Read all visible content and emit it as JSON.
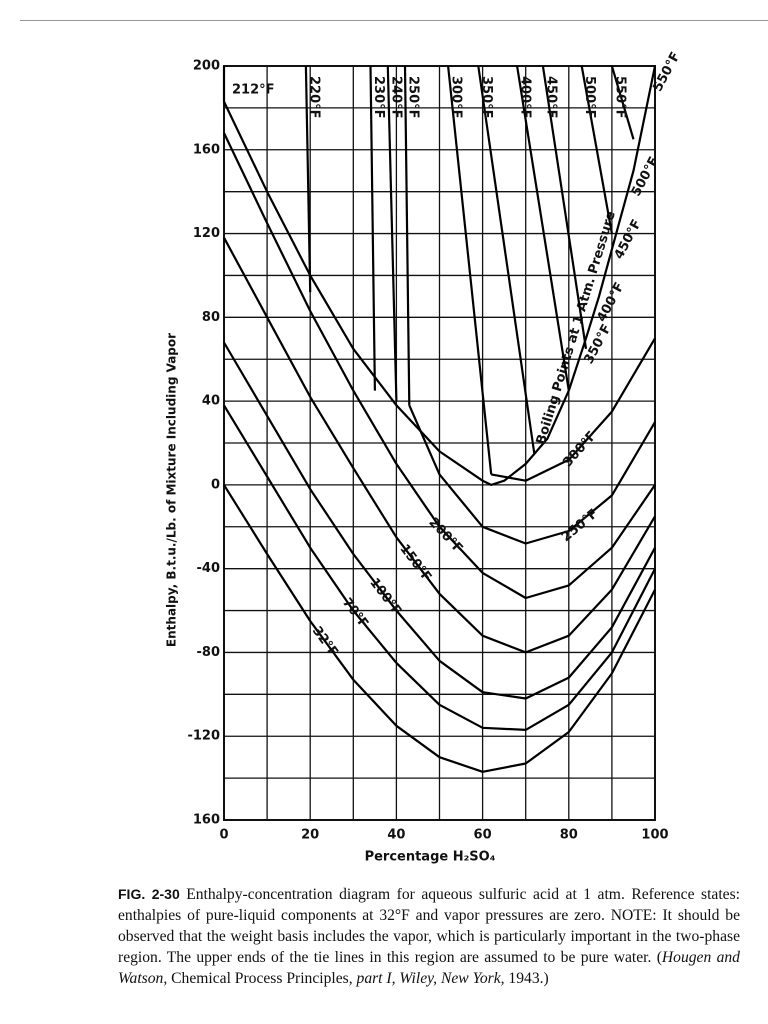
{
  "chart_data": {
    "type": "line",
    "y_label": "Enthalpy, B.t.u./Lb. of Mixture Including Vapor",
    "x_label": "Percentage H₂SO₄",
    "xlim": [
      0,
      100
    ],
    "ylim": [
      -160,
      200
    ],
    "xticks": [
      0,
      20,
      40,
      60,
      80,
      100
    ],
    "yticks": [
      {
        "value": -160,
        "label": "160"
      },
      -120,
      -80,
      -40,
      0,
      40,
      80,
      120,
      160,
      200
    ],
    "minor_xticks": [
      10,
      30,
      50,
      70,
      90
    ],
    "minor_yticks": [
      -140,
      -100,
      -60,
      -20,
      20,
      60,
      100,
      140,
      180
    ],
    "grid": true,
    "series": [
      {
        "name": "32°F",
        "color": "#000000",
        "x": [
          0,
          10,
          20,
          30,
          40,
          50,
          60,
          70,
          80,
          90,
          100
        ],
        "values": [
          0,
          -33,
          -65,
          -93,
          -115,
          -130,
          -137,
          -133,
          -118,
          -90,
          -50
        ]
      },
      {
        "name": "70°F",
        "color": "#000000",
        "x": [
          0,
          10,
          20,
          30,
          40,
          50,
          60,
          70,
          80,
          90,
          100
        ],
        "values": [
          38,
          4,
          -30,
          -60,
          -85,
          -105,
          -116,
          -117,
          -105,
          -80,
          -40
        ]
      },
      {
        "name": "100°F",
        "color": "#000000",
        "x": [
          0,
          10,
          20,
          30,
          40,
          50,
          60,
          70,
          80,
          90,
          100
        ],
        "values": [
          68,
          33,
          -2,
          -33,
          -60,
          -84,
          -99,
          -102,
          -92,
          -68,
          -30
        ]
      },
      {
        "name": "150°F",
        "color": "#000000",
        "x": [
          0,
          10,
          20,
          30,
          40,
          50,
          60,
          70,
          80,
          90,
          100
        ],
        "values": [
          118,
          80,
          42,
          8,
          -25,
          -52,
          -72,
          -80,
          -72,
          -50,
          -15
        ]
      },
      {
        "name": "200°F",
        "color": "#000000",
        "x": [
          0,
          10,
          20,
          30,
          40,
          50,
          60,
          70,
          80,
          90,
          100
        ],
        "values": [
          168,
          125,
          83,
          45,
          10,
          -20,
          -42,
          -54,
          -48,
          -30,
          0
        ]
      },
      {
        "name": "250°F",
        "color": "#000000",
        "x": [
          43,
          50,
          60,
          70,
          80,
          90,
          100
        ],
        "values": [
          38,
          5,
          -20,
          -28,
          -22,
          -5,
          30
        ]
      },
      {
        "name": "300°F",
        "color": "#000000",
        "x": [
          62,
          70,
          80,
          90,
          100
        ],
        "values": [
          5,
          2,
          12,
          35,
          70
        ]
      },
      {
        "name": "Boiling Points at 1 Atm. Pressure",
        "color": "#000000",
        "x": [
          0,
          10,
          20,
          30,
          40,
          50,
          60,
          62,
          65,
          70,
          75,
          80,
          84,
          87,
          91,
          95,
          100
        ],
        "values": [
          183,
          140,
          100,
          65,
          38,
          16,
          2,
          0,
          2,
          10,
          22,
          45,
          70,
          90,
          120,
          150,
          200
        ],
        "point_labels": [
          null,
          null,
          null,
          null,
          null,
          null,
          null,
          null,
          null,
          null,
          null,
          null,
          "350°F",
          "400°F",
          "450°F",
          "500°F",
          "550°F"
        ]
      }
    ],
    "tie_lines": [
      {
        "name": "212°F",
        "color": "#000000",
        "x": [
          0,
          0
        ],
        "values": [
          183,
          200
        ]
      },
      {
        "name": "220°F",
        "color": "#000000",
        "x": [
          20,
          19
        ],
        "values": [
          92,
          200
        ]
      },
      {
        "name": "230°F",
        "color": "#000000",
        "x": [
          35,
          34
        ],
        "values": [
          45,
          200
        ]
      },
      {
        "name": "240°F",
        "color": "#000000",
        "x": [
          40,
          38
        ],
        "values": [
          40,
          200
        ]
      },
      {
        "name": "250°F",
        "color": "#000000",
        "x": [
          43,
          42
        ],
        "values": [
          38,
          200
        ]
      },
      {
        "name": "300°F",
        "color": "#000000",
        "x": [
          62,
          52
        ],
        "values": [
          5,
          200
        ]
      },
      {
        "name": "350°F",
        "color": "#000000",
        "x": [
          72,
          59
        ],
        "values": [
          15,
          200
        ]
      },
      {
        "name": "400°F",
        "color": "#000000",
        "x": [
          80,
          68
        ],
        "values": [
          45,
          200
        ]
      },
      {
        "name": "450°F",
        "color": "#000000",
        "x": [
          84,
          74
        ],
        "values": [
          65,
          200
        ]
      },
      {
        "name": "500°F",
        "color": "#000000",
        "x": [
          90,
          83
        ],
        "values": [
          120,
          200
        ]
      },
      {
        "name": "550°F",
        "color": "#000000",
        "x": [
          95,
          90
        ],
        "values": [
          165,
          200
        ]
      }
    ],
    "caption_label": "FIG. 2-30",
    "caption": [
      {
        "text": " Enthalpy-concentration diagram for aqueous sulfuric acid at 1 atm. Reference states: enthalpies of pure-liquid components at 32°F and vapor pressures are zero. "
      },
      {
        "text": "NOTE:",
        "style": "smallcaps"
      },
      {
        "text": " It should be observed that the weight basis includes the vapor, which is particularly important in the two-phase region. The upper ends of the tie lines in this region are assumed to be pure water. ("
      },
      {
        "text": "Hougen and Watson,",
        "style": "italic"
      },
      {
        "text": " Chemical Process Principles, "
      },
      {
        "text": "part I, Wiley, New York,",
        "style": "italic"
      },
      {
        "text": " 1943.)"
      }
    ]
  }
}
